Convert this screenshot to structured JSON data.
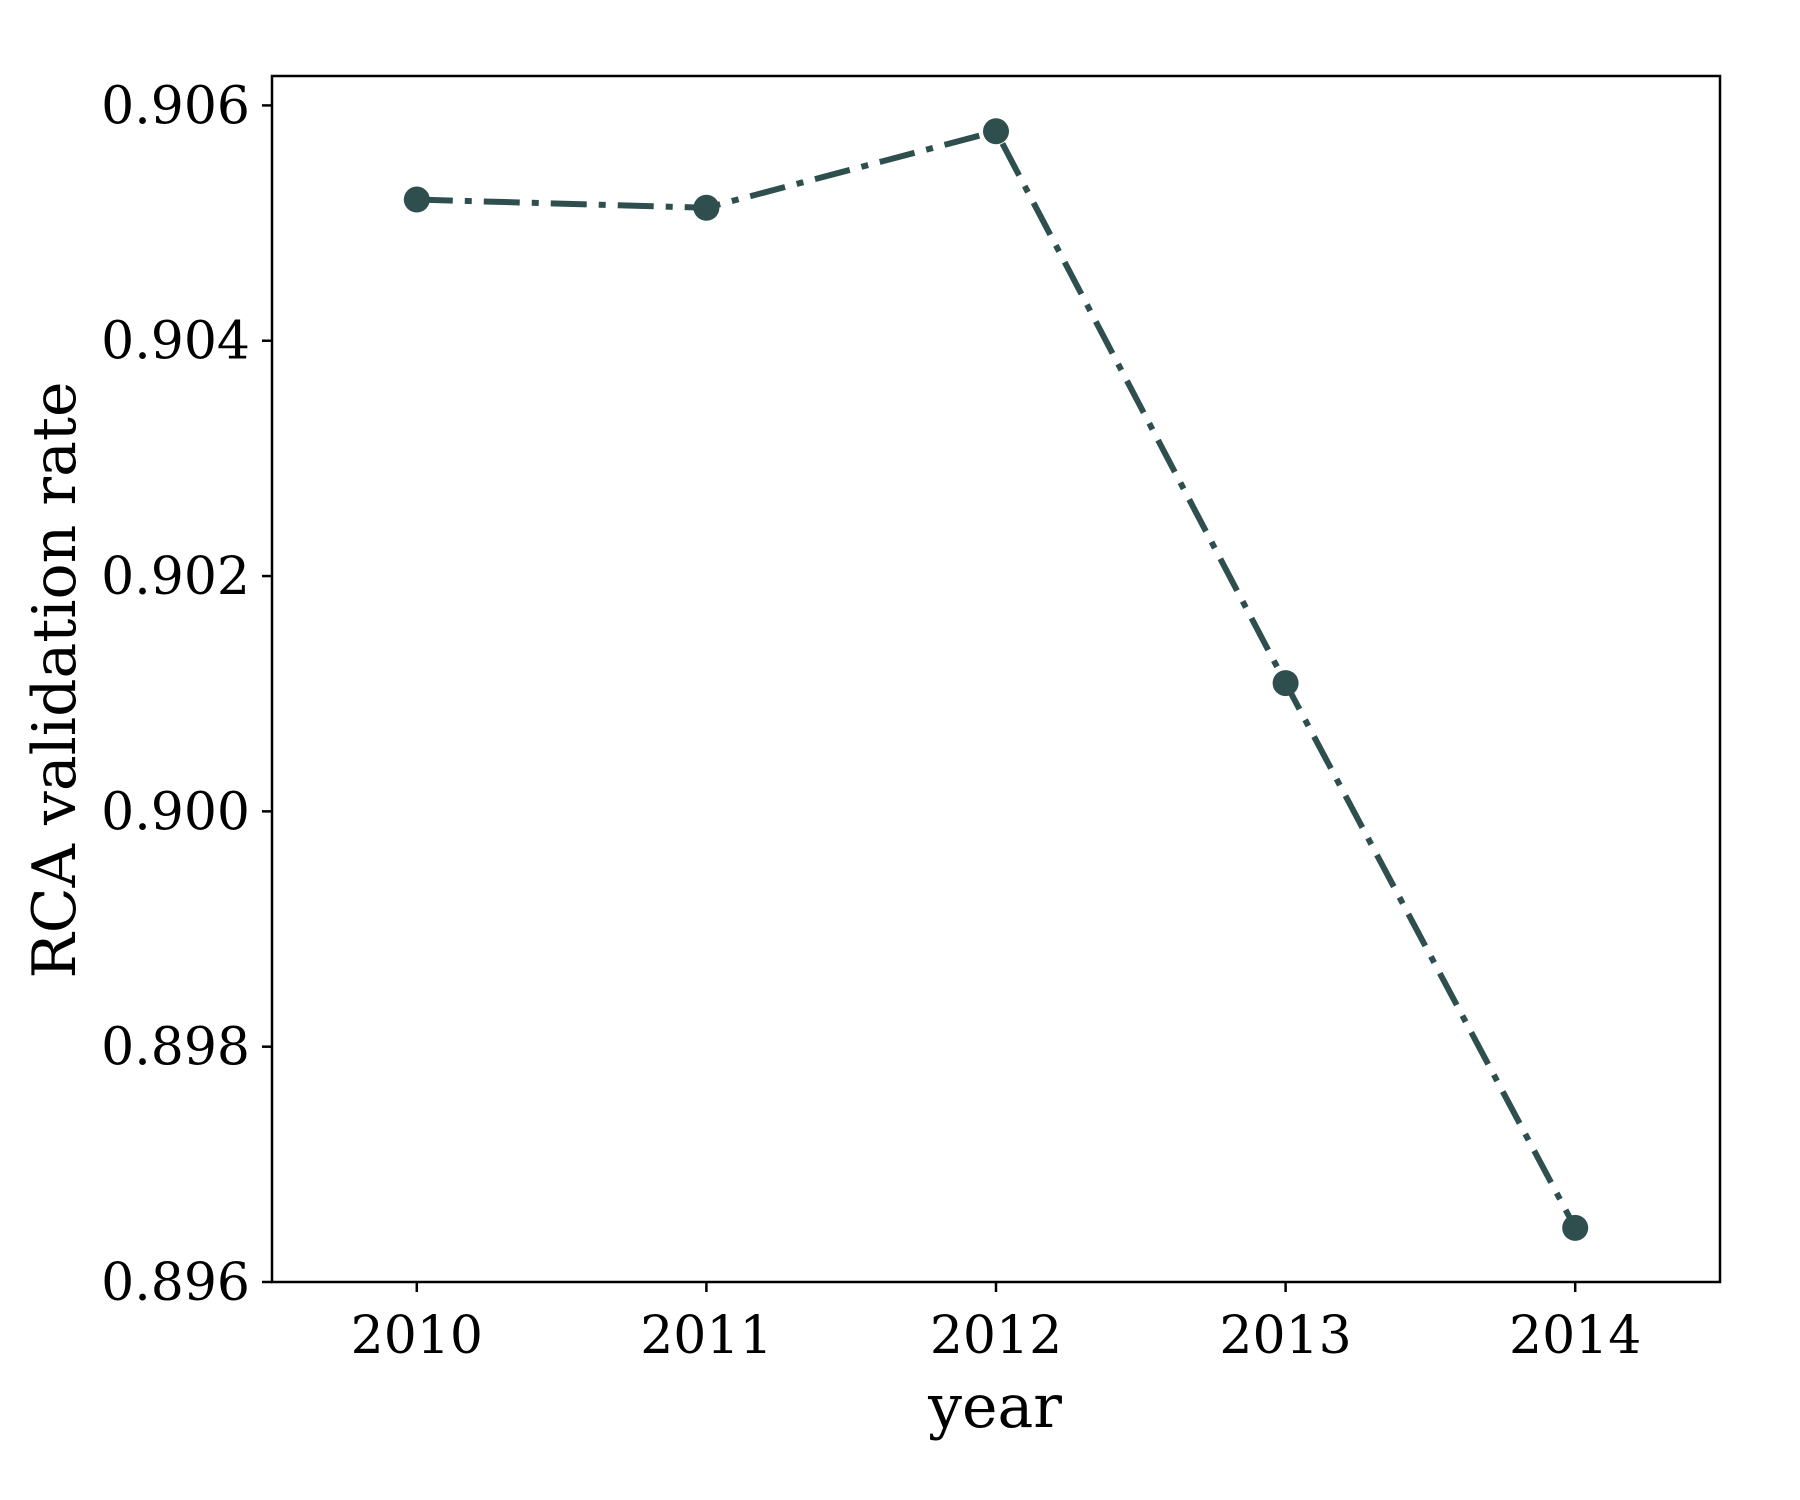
{
  "chart_data": {
    "type": "line",
    "title": "",
    "xlabel": "year",
    "ylabel": "RCA validation rate",
    "x": [
      2010,
      2011,
      2012,
      2013,
      2014
    ],
    "x_tick_labels": [
      "2010",
      "2011",
      "2012",
      "2013",
      "2014"
    ],
    "xlim": [
      2009.5,
      2014.5
    ],
    "y_ticks": [
      0.896,
      0.898,
      0.9,
      0.902,
      0.904,
      0.906
    ],
    "y_tick_labels": [
      "0.896",
      "0.898",
      "0.900",
      "0.902",
      "0.904",
      "0.906"
    ],
    "ylim": [
      0.896,
      0.90625
    ],
    "grid": false,
    "legend": false,
    "series": [
      {
        "values": [
          0.9052,
          0.90513,
          0.90578,
          0.90109,
          0.89646
        ],
        "color": "#2f4f4f",
        "line_style": "dashdot",
        "marker": "circle"
      }
    ]
  }
}
